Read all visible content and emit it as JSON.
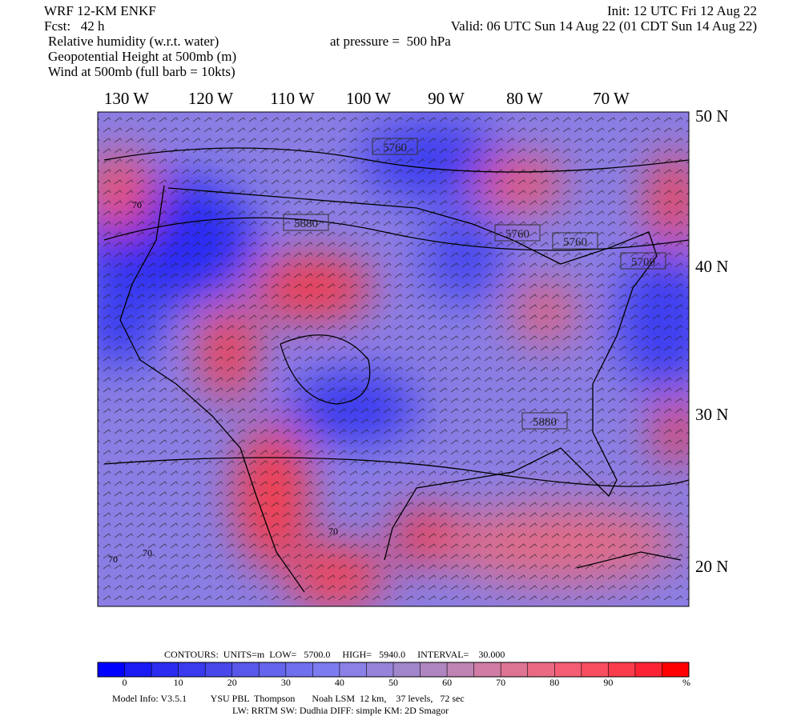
{
  "header": {
    "model": "WRF 12-KM ENKF",
    "forecast": "Fcst:   42 h",
    "init": "Init: 12 UTC Fri 12 Aug 22",
    "valid": "Valid: 06 UTC Sun 14 Aug 22 (01 CDT Sun 14 Aug 22)",
    "field1": "Relative humidity (w.r.t. water)",
    "pressure": "at pressure =  500 hPa",
    "field2": "Geopotential Height at 500mb (m)",
    "field3": "Wind at 500mb (full barb = 10kts)"
  },
  "map": {
    "longitudes": [
      "130 W",
      "120 W",
      "110 W",
      "100 W",
      "90 W",
      "80 W",
      "70 W"
    ],
    "latitudes": [
      "50 N",
      "40 N",
      "30 N",
      "20 N"
    ],
    "contour_labels": [
      "5760",
      "5880",
      "5760",
      "5760",
      "5700",
      "5880",
      "70",
      "70",
      "70",
      "70"
    ]
  },
  "colorbar": {
    "contours": "CONTOURS:  UNITS=m  LOW=   5700.0     HIGH=   5940.0     INTERVAL=    30.000",
    "lim": [
      -5,
      105
    ],
    "ticks": [
      0,
      10,
      20,
      30,
      40,
      50,
      60,
      70,
      80,
      90
    ],
    "unit": "%",
    "colors": [
      "#0000ff",
      "#1a1af5",
      "#2c2cf0",
      "#3a3aee",
      "#4848ea",
      "#5858ea",
      "#6464ec",
      "#7070ee",
      "#7c7cf0",
      "#8a80e6",
      "#9684da",
      "#a286cc",
      "#b086c0",
      "#c084b4",
      "#d07ca4",
      "#de7494",
      "#ea6a84",
      "#f45e74",
      "#f84e60",
      "#fa3c4c",
      "#fc2434",
      "#ff0000"
    ]
  },
  "footer": {
    "line1": "Model Info: V3.5.1          YSU PBL  Thompson       Noah LSM  12 km,    37 levels,   72 sec",
    "line2": "LW: RRTM SW: Dudhia  DIFF: simple KM: 2D Smagor"
  }
}
